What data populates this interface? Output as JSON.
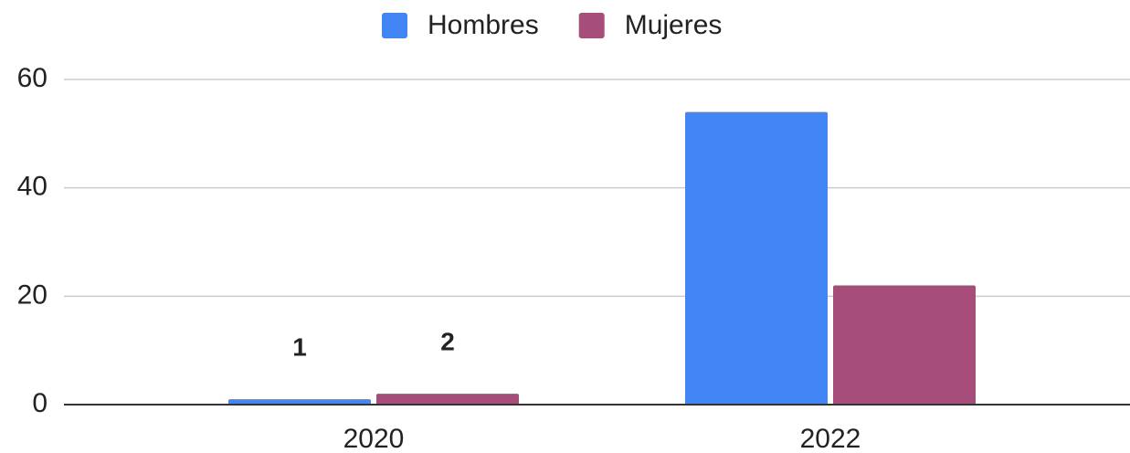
{
  "chart_data": {
    "type": "bar",
    "categories": [
      "2020",
      "2022"
    ],
    "series": [
      {
        "name": "Hombres",
        "color": "#4285f4",
        "values": [
          1,
          54
        ],
        "value_labels": [
          "1",
          null
        ]
      },
      {
        "name": "Mujeres",
        "color": "#a64d79",
        "values": [
          2,
          22
        ],
        "value_labels": [
          "2",
          null
        ]
      }
    ],
    "ylim": [
      0,
      60
    ],
    "yticks": [
      0,
      20,
      40,
      60
    ],
    "grid": true,
    "legend": "top"
  }
}
